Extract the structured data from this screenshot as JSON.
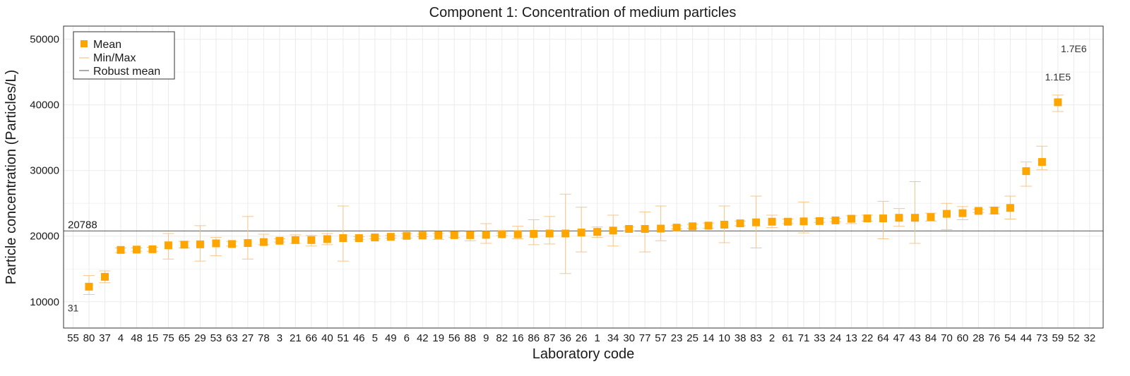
{
  "chart_data": {
    "type": "scatter",
    "title": "Component 1: Concentration of medium particles",
    "xlabel": "Laboratory code",
    "ylabel": "Particle concentration (Particles/L)",
    "ylim": [
      6000,
      52000
    ],
    "y_ticks": [
      10000,
      20000,
      30000,
      40000,
      50000
    ],
    "grid": true,
    "legend_position": "top-left",
    "legend": [
      "Mean",
      "Min/Max",
      "Robust mean"
    ],
    "robust_mean": 20788,
    "robust_mean_label": "20788",
    "colors": {
      "mean": "#FFA500",
      "minmax": "#F5C58A",
      "robust_mean": "#555555",
      "grid": "#ebebeb"
    },
    "categories": [
      "55",
      "80",
      "37",
      "4",
      "48",
      "15",
      "75",
      "65",
      "29",
      "53",
      "63",
      "27",
      "78",
      "3",
      "21",
      "66",
      "40",
      "51",
      "46",
      "5",
      "49",
      "6",
      "42",
      "19",
      "56",
      "88",
      "9",
      "82",
      "16",
      "86",
      "87",
      "36",
      "26",
      "1",
      "34",
      "30",
      "77",
      "57",
      "23",
      "25",
      "14",
      "10",
      "38",
      "83",
      "2",
      "61",
      "71",
      "33",
      "24",
      "13",
      "22",
      "64",
      "47",
      "43",
      "84",
      "70",
      "60",
      "28",
      "76",
      "54",
      "44",
      "73",
      "59",
      "52",
      "32"
    ],
    "mean": [
      null,
      12300,
      13800,
      17900,
      17950,
      18000,
      18600,
      18700,
      18750,
      18900,
      18800,
      18950,
      19100,
      19300,
      19400,
      19400,
      19550,
      19700,
      19700,
      19800,
      19900,
      20050,
      20100,
      20150,
      20150,
      20150,
      20200,
      20300,
      20300,
      20350,
      20400,
      20400,
      20550,
      20650,
      20850,
      21100,
      21100,
      21150,
      21300,
      21500,
      21600,
      21750,
      21950,
      22100,
      22200,
      22200,
      22250,
      22300,
      22400,
      22650,
      22700,
      22700,
      22800,
      22800,
      22900,
      23400,
      23500,
      23850,
      23900,
      24300,
      29900,
      31300,
      40400,
      null,
      null
    ],
    "min": [
      null,
      11100,
      12900,
      17500,
      17700,
      17700,
      16500,
      18200,
      16200,
      17000,
      18500,
      16500,
      18700,
      19100,
      18900,
      18500,
      18700,
      16200,
      19500,
      19600,
      19700,
      19700,
      19900,
      19500,
      19800,
      19300,
      18900,
      20100,
      19600,
      18700,
      18800,
      14300,
      17600,
      19800,
      18500,
      20800,
      17600,
      19300,
      21100,
      21200,
      21200,
      19000,
      21600,
      18200,
      21300,
      21900,
      20500,
      22100,
      22200,
      21900,
      22300,
      19600,
      21500,
      18900,
      22300,
      21000,
      22500,
      23600,
      23400,
      22600,
      27600,
      30100,
      39000,
      null,
      null
    ],
    "max": [
      null,
      14000,
      14700,
      18200,
      18200,
      18300,
      20400,
      19200,
      21600,
      19800,
      19200,
      23000,
      20300,
      19600,
      20200,
      20100,
      20400,
      24600,
      19900,
      20000,
      20100,
      20400,
      20300,
      20400,
      20600,
      20700,
      21900,
      20500,
      21500,
      22500,
      23000,
      26400,
      24400,
      21400,
      23200,
      21400,
      23700,
      24600,
      21600,
      21800,
      22000,
      24600,
      22300,
      26100,
      23200,
      22600,
      25200,
      22700,
      22700,
      23100,
      23200,
      25300,
      24200,
      28300,
      23500,
      25000,
      24500,
      24100,
      24400,
      26100,
      31300,
      33700,
      41500,
      null,
      null
    ],
    "annotations": [
      {
        "category": "55",
        "text": "31",
        "y": 8500
      },
      {
        "category": "59",
        "text": "1.1E5",
        "y": 43700
      },
      {
        "category": "52",
        "text": "1.7E6",
        "y": 48000
      }
    ]
  }
}
